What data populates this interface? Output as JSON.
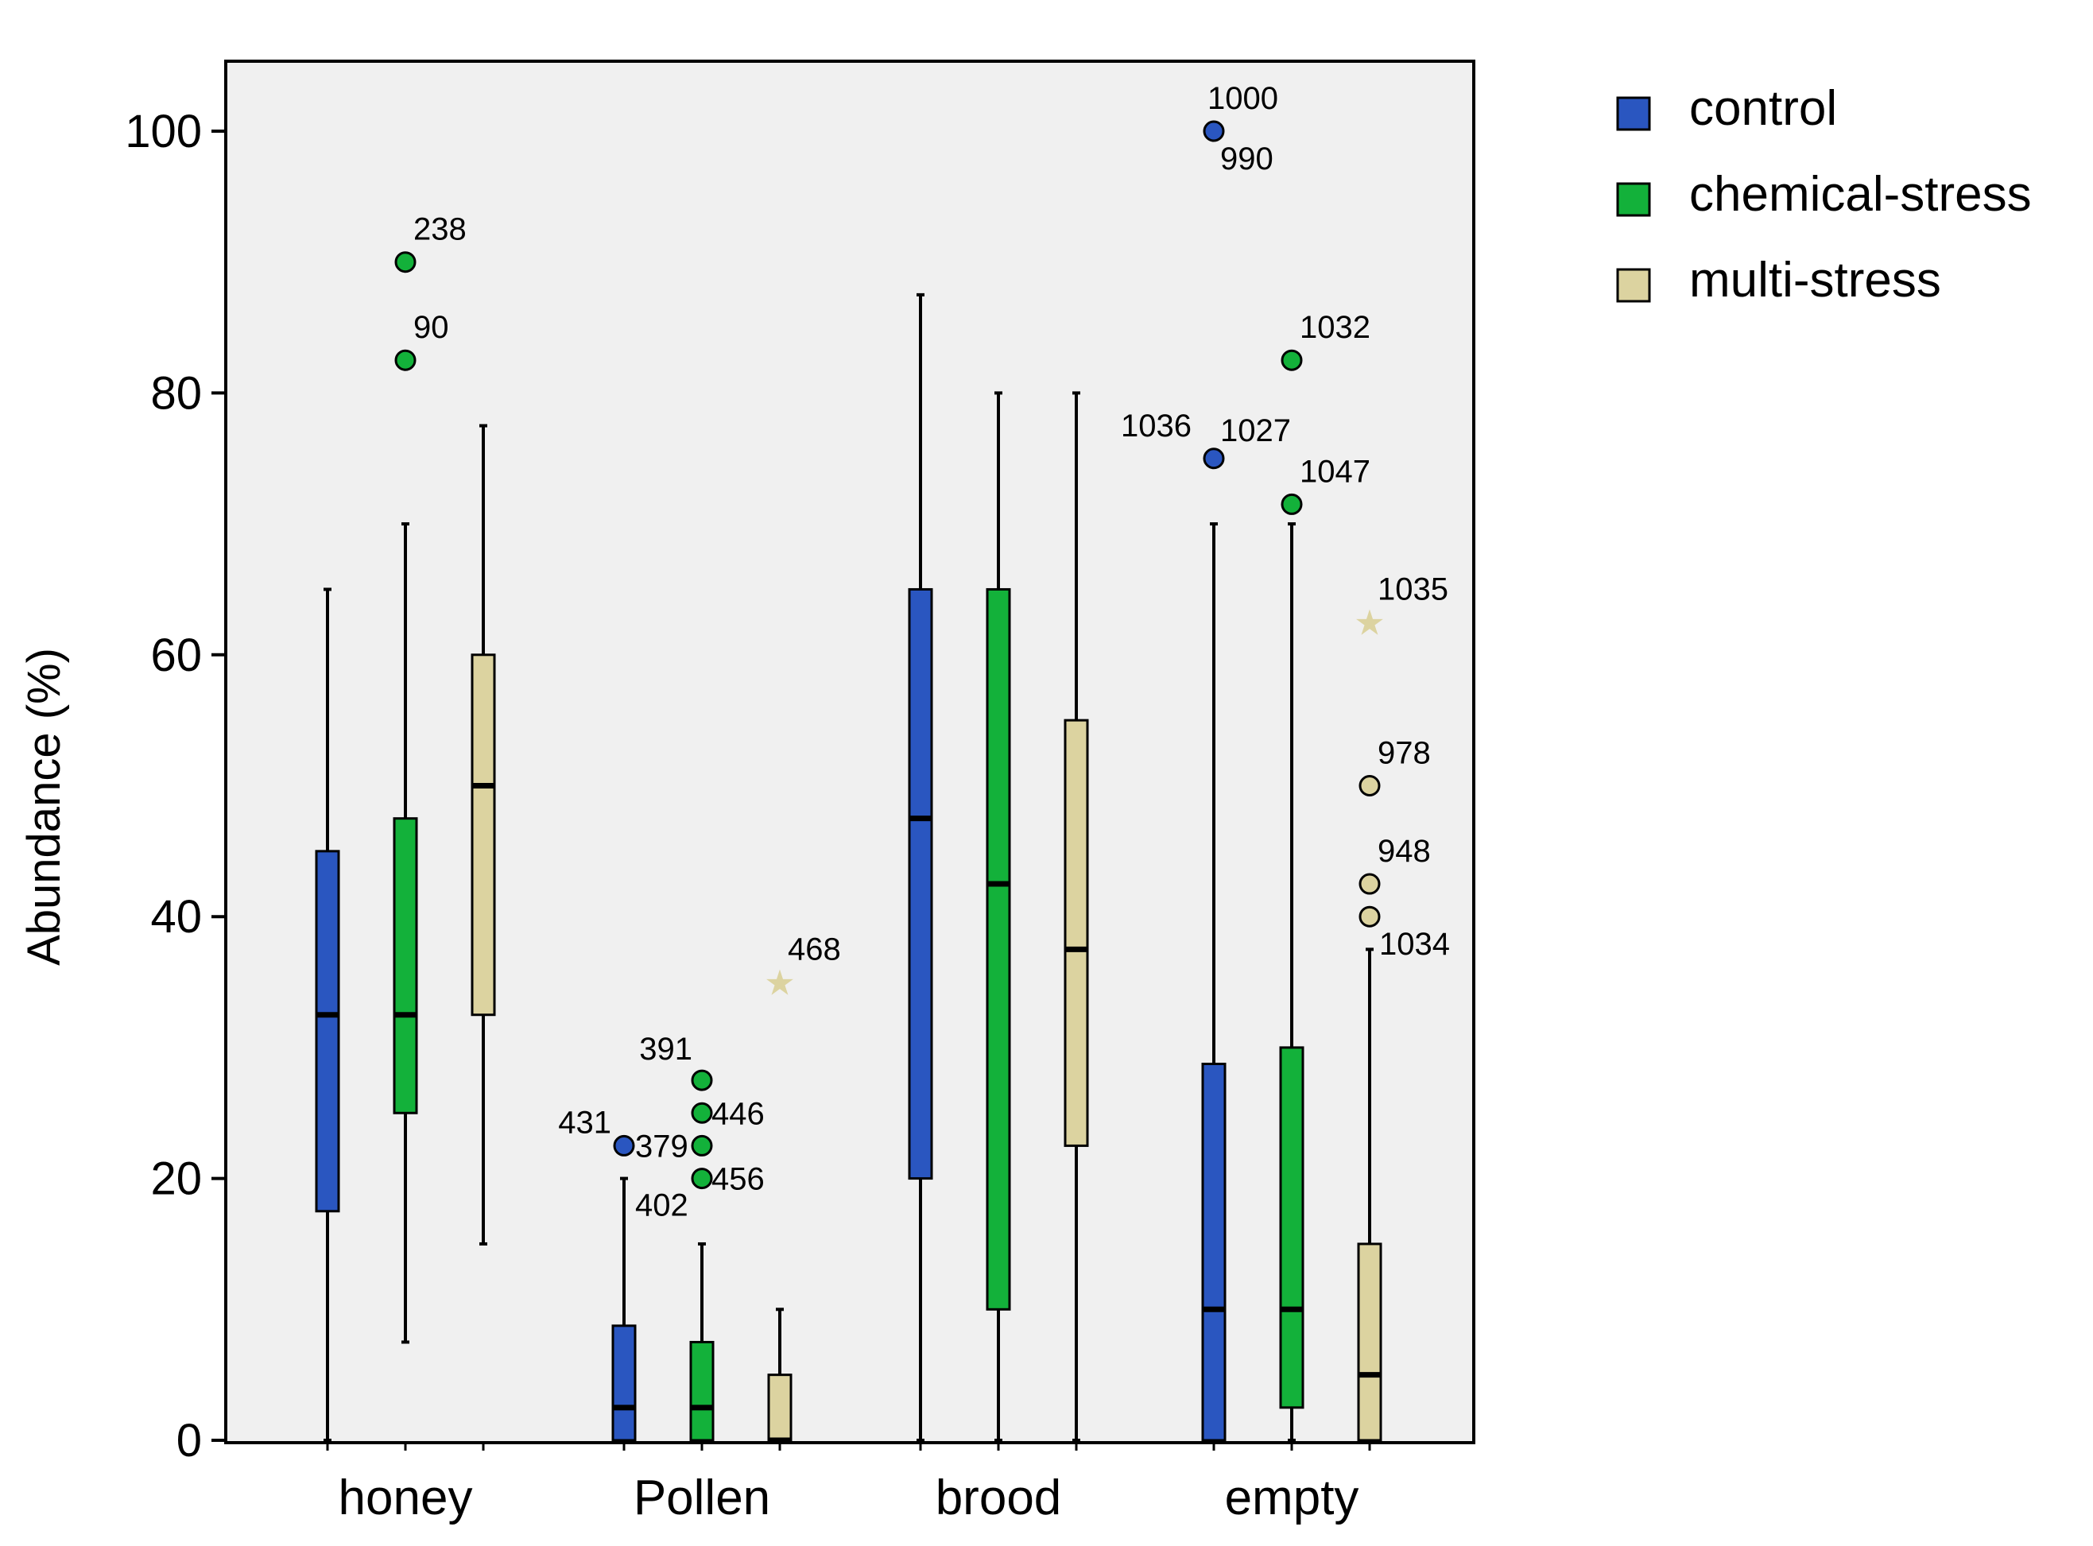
{
  "chart_data": {
    "type": "boxplot",
    "title": "",
    "xlabel": "",
    "ylabel": "Abundance (%)",
    "ylim": [
      0,
      100
    ],
    "yticks": [
      "0",
      "20",
      "40",
      "60",
      "80",
      "100"
    ],
    "grid": false,
    "legend_position": "top-right, outside plot",
    "categories": [
      "honey",
      "Pollen",
      "brood",
      "empty"
    ],
    "series": [
      {
        "name": "control",
        "color": "#2a56c0",
        "boxes": [
          {
            "category": "honey",
            "whisker_low": 0,
            "q1": 17.5,
            "median": 32.5,
            "q3": 45,
            "whisker_high": 65,
            "outliers": []
          },
          {
            "category": "Pollen",
            "whisker_low": 0,
            "q1": 0,
            "median": 2.5,
            "q3": 8.75,
            "whisker_high": 20,
            "outliers": [
              {
                "value": 22.5,
                "marker": "circle",
                "labels": [
                  "431",
                  "379",
                  "402"
                ]
              }
            ]
          },
          {
            "category": "brood",
            "whisker_low": 0,
            "q1": 20,
            "median": 47.5,
            "q3": 65,
            "whisker_high": 87.5,
            "outliers": []
          },
          {
            "category": "empty",
            "whisker_low": 0,
            "q1": 0,
            "median": 10,
            "q3": 28.75,
            "whisker_high": 70,
            "outliers": [
              {
                "value": 100,
                "marker": "circle",
                "labels": [
                  "1000",
                  "990"
                ]
              },
              {
                "value": 75,
                "marker": "circle",
                "labels": [
                  "1036",
                  "1027"
                ]
              }
            ]
          }
        ]
      },
      {
        "name": "chemical-stress",
        "color": "#13b13a",
        "boxes": [
          {
            "category": "honey",
            "whisker_low": 7.5,
            "q1": 25,
            "median": 32.5,
            "q3": 47.5,
            "whisker_high": 70,
            "outliers": [
              {
                "value": 90,
                "marker": "circle",
                "labels": [
                  "238"
                ]
              },
              {
                "value": 82.5,
                "marker": "circle",
                "labels": [
                  "90"
                ]
              }
            ]
          },
          {
            "category": "Pollen",
            "whisker_low": 0,
            "q1": 0,
            "median": 2.5,
            "q3": 7.5,
            "whisker_high": 15,
            "outliers": [
              {
                "value": 27.5,
                "marker": "circle",
                "labels": [
                  "391"
                ]
              },
              {
                "value": 25,
                "marker": "circle",
                "labels": [
                  "446"
                ]
              },
              {
                "value": 22.5,
                "marker": "circle",
                "labels": []
              },
              {
                "value": 20,
                "marker": "circle",
                "labels": [
                  "456"
                ]
              }
            ]
          },
          {
            "category": "brood",
            "whisker_low": 0,
            "q1": 10,
            "median": 42.5,
            "q3": 65,
            "whisker_high": 80,
            "outliers": []
          },
          {
            "category": "empty",
            "whisker_low": 0,
            "q1": 2.5,
            "median": 10,
            "q3": 30,
            "whisker_high": 70,
            "outliers": [
              {
                "value": 82.5,
                "marker": "circle",
                "labels": [
                  "1032"
                ]
              },
              {
                "value": 71.5,
                "marker": "circle",
                "labels": [
                  "1047"
                ]
              }
            ]
          }
        ]
      },
      {
        "name": "multi-stress",
        "color": "#dcd3a0",
        "boxes": [
          {
            "category": "honey",
            "whisker_low": 15,
            "q1": 32.5,
            "median": 50,
            "q3": 60,
            "whisker_high": 77.5,
            "outliers": []
          },
          {
            "category": "Pollen",
            "whisker_low": 0,
            "q1": 0,
            "median": 0,
            "q3": 5,
            "whisker_high": 10,
            "outliers": [
              {
                "value": 35,
                "marker": "star",
                "labels": [
                  "468"
                ]
              }
            ]
          },
          {
            "category": "brood",
            "whisker_low": 0,
            "q1": 22.5,
            "median": 37.5,
            "q3": 55,
            "whisker_high": 80,
            "outliers": []
          },
          {
            "category": "empty",
            "whisker_low": 0,
            "q1": 0,
            "median": 5,
            "q3": 15,
            "whisker_high": 37.5,
            "outliers": [
              {
                "value": 62.5,
                "marker": "star",
                "labels": [
                  "1035"
                ]
              },
              {
                "value": 50,
                "marker": "circle",
                "labels": [
                  "978"
                ]
              },
              {
                "value": 42.5,
                "marker": "circle",
                "labels": [
                  "948"
                ]
              },
              {
                "value": 40,
                "marker": "circle",
                "labels": [
                  "1034"
                ]
              }
            ]
          }
        ]
      }
    ]
  },
  "legend": {
    "items": [
      {
        "label": "control",
        "color": "#2a56c0"
      },
      {
        "label": "chemical-stress",
        "color": "#13b13a"
      },
      {
        "label": "multi-stress",
        "color": "#dcd3a0"
      }
    ]
  }
}
